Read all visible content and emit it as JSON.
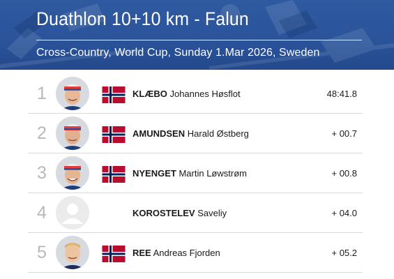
{
  "header": {
    "title": "Duathlon 10+10 km - Falun",
    "subtitle": "Cross-Country, World Cup, Sunday 1.Mar 2026, Sweden"
  },
  "colors": {
    "header_bg": "#2a539a",
    "rank_text": "#b8b8b8",
    "row_divider": "#d9d9d9"
  },
  "results": [
    {
      "rank": "1",
      "last": "KLÆBO",
      "first": "Johannes Høsfl​ot",
      "time": "48:41.8",
      "flag": "norway-flag",
      "photo": true
    },
    {
      "rank": "2",
      "last": "AMUNDSEN",
      "first": "Harald Østberg",
      "time": "+ 00.7",
      "flag": "norway-flag",
      "photo": true
    },
    {
      "rank": "3",
      "last": "NYENGET",
      "first": "Martin Løwstrøm",
      "time": "+ 00.8",
      "flag": "norway-flag",
      "photo": true
    },
    {
      "rank": "4",
      "last": "KOROSTELEV",
      "first": "Saveliy",
      "time": "+ 04.0",
      "flag": "",
      "photo": false
    },
    {
      "rank": "5",
      "last": "REE",
      "first": "Andreas Fjorden",
      "time": "+ 05.2",
      "flag": "norway-flag",
      "photo": true
    }
  ]
}
